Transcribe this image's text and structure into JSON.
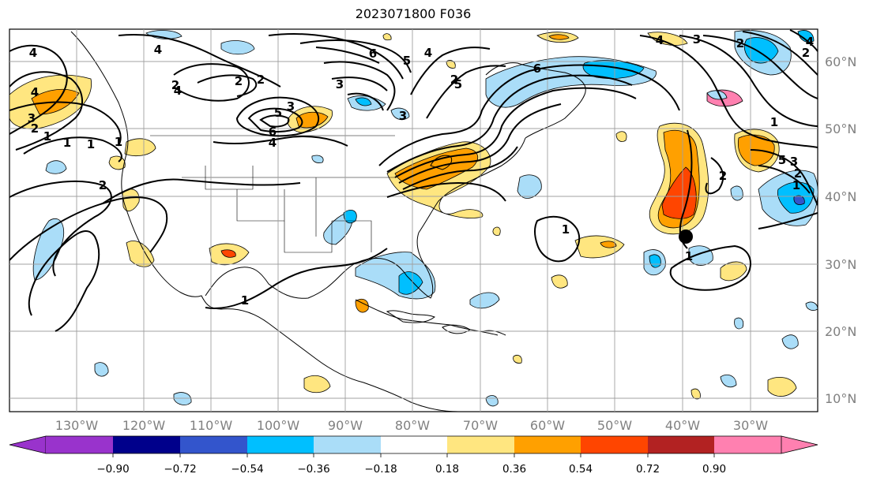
{
  "title": "2023071800 F036",
  "lon_labels": [
    "130°W",
    "120°W",
    "110°W",
    "100°W",
    "90°W",
    "80°W",
    "70°W",
    "60°W",
    "50°W",
    "40°W",
    "30°W"
  ],
  "lat_labels": [
    "60°N",
    "50°N",
    "40°N",
    "30°N",
    "20°N",
    "10°N"
  ],
  "colorbar": {
    "ticks": [
      "−0.90",
      "−0.72",
      "−0.54",
      "−0.36",
      "−0.18",
      "0.18",
      "0.36",
      "0.54",
      "0.72",
      "0.90"
    ],
    "colors": [
      "#9933cc",
      "#00008b",
      "#3355cc",
      "#00bfff",
      "#aaddf8",
      "#ffffff",
      "#ffe680",
      "#ffa000",
      "#ff4500",
      "#b22222",
      "#ff80b0"
    ]
  },
  "contour_labels": [
    "4",
    "4",
    "2",
    "4",
    "2",
    "3",
    "6",
    "5",
    "4",
    "3",
    "2",
    "1",
    "6",
    "5",
    "4",
    "3",
    "2",
    "1",
    "6",
    "5",
    "4",
    "3",
    "2",
    "1",
    "4",
    "3",
    "2",
    "1",
    "4",
    "2",
    "5",
    "3",
    "2",
    "1",
    "2",
    "1",
    "1",
    "1",
    "1",
    "2"
  ],
  "colors": {
    "land": "#000000",
    "grid": "#a0a0a0",
    "contour": "#000000",
    "marker": "#000000"
  },
  "marker_label": "",
  "overlay": "standardized anomaly shading with height contours"
}
